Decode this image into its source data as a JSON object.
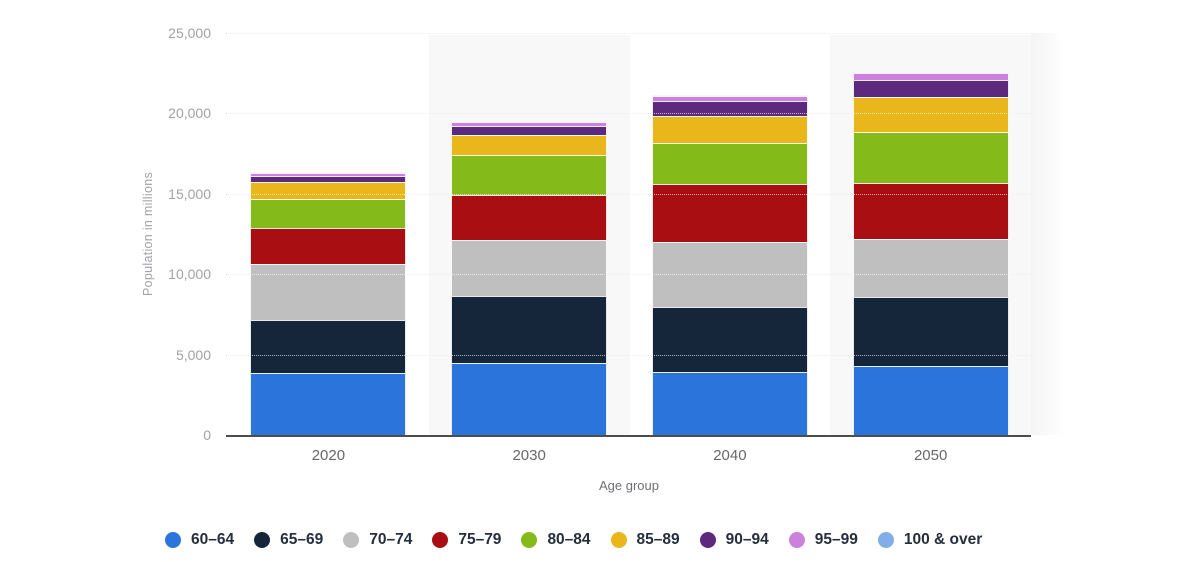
{
  "chart_data": {
    "type": "bar",
    "stacked": true,
    "title": "",
    "xlabel": "Age group",
    "ylabel": "Population in millions",
    "categories": [
      "2020",
      "2030",
      "2040",
      "2050"
    ],
    "series": [
      {
        "name": "60–64",
        "color": "#2b74dc",
        "values": [
          3880,
          4500,
          3900,
          4310
        ]
      },
      {
        "name": "65–69",
        "color": "#15263b",
        "values": [
          3290,
          4150,
          4070,
          4250
        ]
      },
      {
        "name": "70–74",
        "color": "#bfbfbf",
        "values": [
          3440,
          3470,
          4030,
          3650
        ]
      },
      {
        "name": "75–79",
        "color": "#a90f12",
        "values": [
          2270,
          2820,
          3590,
          3480
        ]
      },
      {
        "name": "80–84",
        "color": "#84ba19",
        "values": [
          1800,
          2450,
          2580,
          3130
        ]
      },
      {
        "name": "85–89",
        "color": "#e9b61c",
        "values": [
          1060,
          1270,
          1690,
          2230
        ]
      },
      {
        "name": "90–94",
        "color": "#5c297e",
        "values": [
          370,
          560,
          910,
          1020
        ]
      },
      {
        "name": "95–99",
        "color": "#cc82dd",
        "values": [
          180,
          240,
          330,
          430
        ]
      },
      {
        "name": "100 & over",
        "color": "#81aee8",
        "values": [
          40,
          50,
          60,
          70
        ]
      }
    ],
    "ylim": [
      0,
      25000
    ],
    "yticks": [
      0,
      5000,
      10000,
      15000,
      20000,
      25000
    ],
    "ytick_labels": [
      "0",
      "5,000",
      "10,000",
      "15,000",
      "20,000",
      "25,000"
    ],
    "grid": "horizontal-dotted",
    "legend_position": "bottom",
    "plot_band_categories": [
      "2030",
      "2050"
    ],
    "plot_band_color": "#f8f8f8"
  }
}
